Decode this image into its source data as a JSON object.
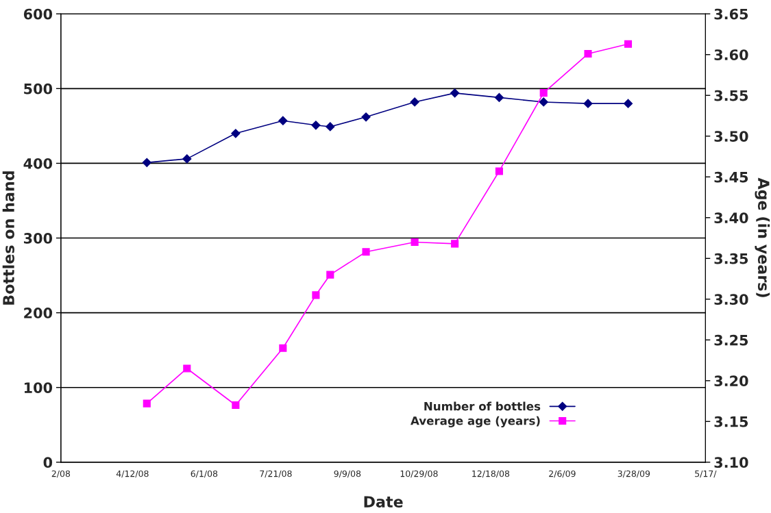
{
  "chart_data": {
    "type": "line",
    "xlabel": "Date",
    "ylabel": "Bottles on hand",
    "y2label": "Age (in years)",
    "x": [
      "2008-04-22",
      "2008-05-20",
      "2008-06-23",
      "2008-07-26",
      "2008-08-18",
      "2008-08-28",
      "2008-09-22",
      "2008-10-26",
      "2008-11-23",
      "2008-12-24",
      "2009-01-24",
      "2009-02-24",
      "2009-03-24"
    ],
    "series": [
      {
        "name": "Number of bottles",
        "color": "#000080",
        "marker": "diamond",
        "values": [
          401,
          406,
          440,
          457,
          451,
          449,
          462,
          482,
          494,
          488,
          482,
          480,
          480
        ]
      },
      {
        "name": "Average age (years)",
        "color": "#ff00ff",
        "marker": "square",
        "axis": "y2",
        "values": [
          3.172,
          3.215,
          3.17,
          3.24,
          3.305,
          3.33,
          3.358,
          3.37,
          3.368,
          3.457,
          3.553,
          3.601,
          3.613
        ]
      }
    ],
    "xlim": [
      "2008-02-22",
      "2009-05-17"
    ],
    "xticks": [
      {
        "value": "2008-02-22",
        "label": "2/08"
      },
      {
        "value": "2008-04-12",
        "label": "4/12/08"
      },
      {
        "value": "2008-06-01",
        "label": "6/1/08"
      },
      {
        "value": "2008-07-21",
        "label": "7/21/08"
      },
      {
        "value": "2008-09-09",
        "label": "9/9/08"
      },
      {
        "value": "2008-10-29",
        "label": "10/29/08"
      },
      {
        "value": "2008-12-18",
        "label": "12/18/08"
      },
      {
        "value": "2009-02-06",
        "label": "2/6/09"
      },
      {
        "value": "2009-03-28",
        "label": "3/28/09"
      },
      {
        "value": "2009-05-17",
        "label": "5/17/"
      }
    ],
    "ylim": [
      0,
      600
    ],
    "yticks": [
      0,
      100,
      200,
      300,
      400,
      500,
      600
    ],
    "y2lim": [
      3.1,
      3.65
    ],
    "y2ticks": [
      {
        "value": 3.1,
        "label": "3.10"
      },
      {
        "value": 3.15,
        "label": "3.15"
      },
      {
        "value": 3.2,
        "label": "3.20"
      },
      {
        "value": 3.25,
        "label": "3.25"
      },
      {
        "value": 3.3,
        "label": "3.30"
      },
      {
        "value": 3.35,
        "label": "3.35"
      },
      {
        "value": 3.4,
        "label": "3.40"
      },
      {
        "value": 3.45,
        "label": "3.45"
      },
      {
        "value": 3.5,
        "label": "3.50"
      },
      {
        "value": 3.55,
        "label": "3.55"
      },
      {
        "value": 3.6,
        "label": "3.60"
      },
      {
        "value": 3.65,
        "label": "3.65"
      }
    ],
    "grid": "y",
    "legend": "bottom right",
    "line_style": "solid"
  }
}
